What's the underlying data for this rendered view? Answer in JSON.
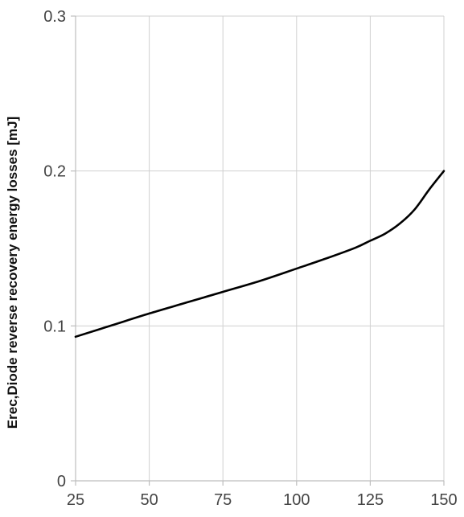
{
  "chart_data": {
    "type": "line",
    "title": "",
    "xlabel": "",
    "ylabel": "Erec,Diode reverse recovery energy losses [mJ]",
    "xlim": [
      25,
      150
    ],
    "ylim": [
      0,
      0.3
    ],
    "grid": true,
    "x_ticks": [
      25,
      50,
      75,
      100,
      125,
      150
    ],
    "x_tick_labels": [
      "25",
      "50",
      "75",
      "100",
      "125",
      "150"
    ],
    "y_ticks": [
      0,
      0.1,
      0.2,
      0.3
    ],
    "y_tick_labels": [
      "0",
      "0.1",
      "0.2",
      "0.3"
    ],
    "series": [
      {
        "x": [
          25,
          37.5,
          50,
          62.5,
          75,
          87.5,
          100,
          110,
          120,
          125,
          130,
          135,
          140,
          145,
          150
        ],
        "y": [
          0.093,
          0.1005,
          0.108,
          0.115,
          0.122,
          0.129,
          0.137,
          0.1435,
          0.1505,
          0.155,
          0.1595,
          0.166,
          0.175,
          0.188,
          0.2
        ],
        "color": "#000000"
      }
    ]
  }
}
